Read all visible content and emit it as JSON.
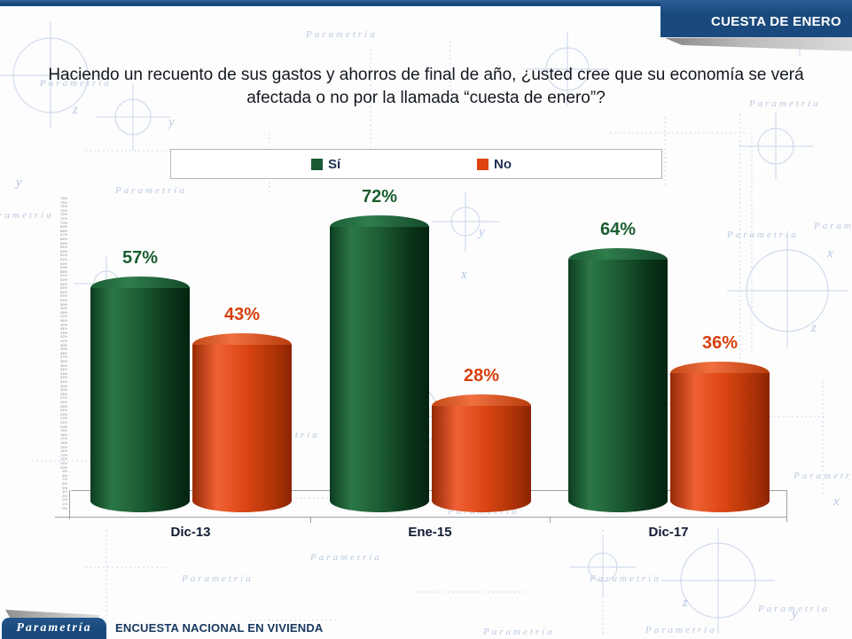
{
  "header": {
    "title": "CUESTA DE ENERO"
  },
  "question": "Haciendo un recuento de sus gastos y ahorros de final de año, ¿usted cree que su economía se verá afectada o no por la llamada “cuesta de enero”?",
  "legend": {
    "items": [
      {
        "key": "si",
        "label": "Sí",
        "color": "#175a33"
      },
      {
        "key": "no",
        "label": "No",
        "color": "#df420e"
      }
    ]
  },
  "chart_data": {
    "type": "bar",
    "subtype": "3d-cylinder",
    "title": "",
    "categories": [
      "Dic-13",
      "Ene-15",
      "Dic-17"
    ],
    "series": [
      {
        "key": "si",
        "name": "Sí",
        "color": "#14522c",
        "label_color": "#1b5e2f",
        "values": [
          57,
          72,
          64
        ]
      },
      {
        "key": "no",
        "name": "No",
        "color": "#df420e",
        "label_color": "#d63f0b",
        "values": [
          43,
          28,
          36
        ]
      }
    ],
    "value_suffix": "%",
    "xlabel": "",
    "ylabel": "",
    "ylim": [
      0,
      76
    ],
    "y_tick_step": 1,
    "grid": false,
    "legend_position": "top",
    "value_labels": "above-bars"
  },
  "footer": {
    "logo": "Parametría",
    "label": "ENCUESTA NACIONAL EN VIVIENDA"
  },
  "background": {
    "watermark": "Parametría",
    "letters": [
      "x",
      "y",
      "z"
    ]
  },
  "colors": {
    "navy": "#1a4a7d",
    "green": "#14522c",
    "orange": "#df420e",
    "axis_gray": "#9aa0a6"
  }
}
